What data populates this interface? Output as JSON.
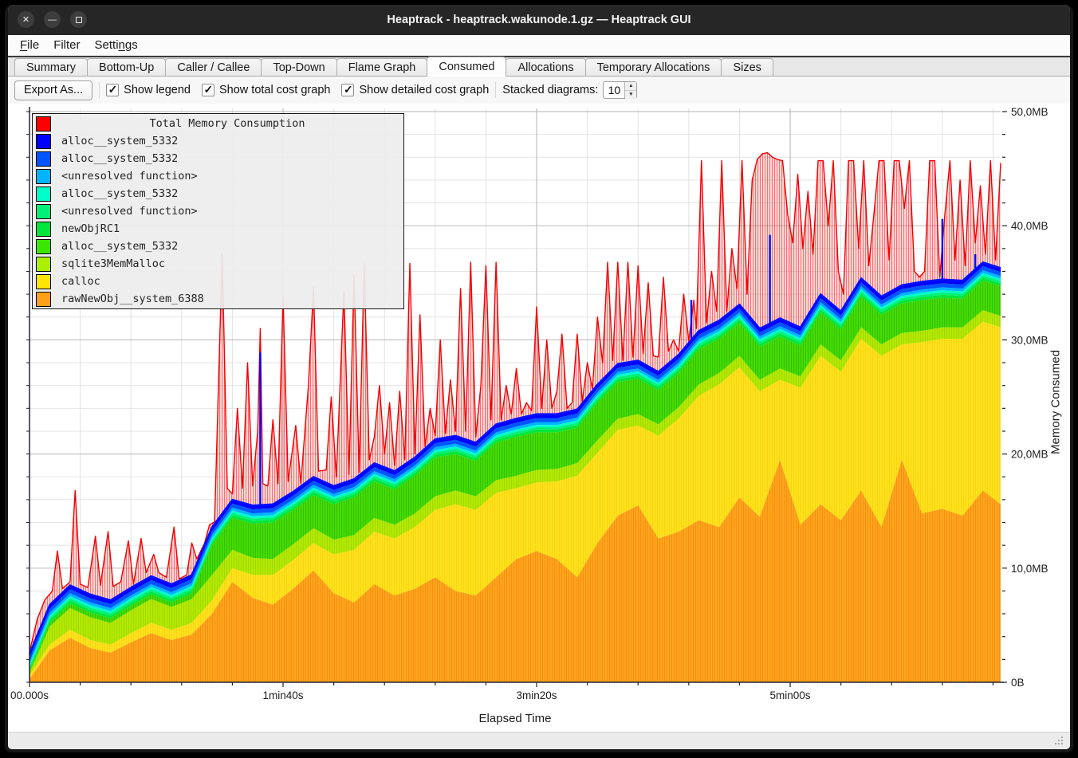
{
  "window": {
    "title": "Heaptrack - heaptrack.wakunode.1.gz — Heaptrack GUI",
    "controls": [
      {
        "name": "close",
        "glyph": "✕"
      },
      {
        "name": "minimize",
        "glyph": "—"
      },
      {
        "name": "maximize",
        "glyph": "sq"
      }
    ]
  },
  "menu": {
    "items": [
      {
        "label": "File",
        "accel_index": 0
      },
      {
        "label": "Filter",
        "accel_index": -1
      },
      {
        "label": "Settings",
        "accel_index": 5
      }
    ]
  },
  "tabs": {
    "items": [
      "Summary",
      "Bottom-Up",
      "Caller / Callee",
      "Top-Down",
      "Flame Graph",
      "Consumed",
      "Allocations",
      "Temporary Allocations",
      "Sizes"
    ],
    "active": "Consumed"
  },
  "toolbar": {
    "export_label": "Export As...",
    "checkboxes": [
      {
        "label": "Show legend",
        "checked": true
      },
      {
        "label": "Show total cost graph",
        "checked": true
      },
      {
        "label": "Show detailed cost graph",
        "checked": true
      }
    ],
    "stacked_label": "Stacked diagrams:",
    "stacked_value": "10"
  },
  "chart_data": {
    "type": "area",
    "xlabel": "Elapsed Time",
    "ylabel": "Memory Consumed",
    "xlim_seconds": [
      0,
      383
    ],
    "ylim_mb": [
      0,
      50
    ],
    "x_major_ticks": [
      {
        "t": 0,
        "label": "00.000s"
      },
      {
        "t": 100,
        "label": "1min40s"
      },
      {
        "t": 200,
        "label": "3min20s"
      },
      {
        "t": 300,
        "label": "5min00s"
      }
    ],
    "x_minor_step": 20,
    "y_major_ticks": [
      {
        "v": 0,
        "label": "0B"
      },
      {
        "v": 10,
        "label": "10,0MB"
      },
      {
        "v": 20,
        "label": "20,0MB"
      },
      {
        "v": 30,
        "label": "30,0MB"
      },
      {
        "v": 40,
        "label": "40,0MB"
      },
      {
        "v": 50,
        "label": "50,0MB"
      }
    ],
    "y_minor_step": 2,
    "legend": [
      {
        "label": "Total Memory Consumption",
        "color": "#ff0000",
        "title_row": true
      },
      {
        "label": "alloc__system_5332",
        "color": "#0000ff"
      },
      {
        "label": "alloc__system_5332",
        "color": "#0055ff"
      },
      {
        "label": "<unresolved function>",
        "color": "#00b4ff"
      },
      {
        "label": "alloc__system_5332",
        "color": "#00ffc8"
      },
      {
        "label": "<unresolved function>",
        "color": "#00f078"
      },
      {
        "label": "newObjRC1",
        "color": "#00e63c"
      },
      {
        "label": "alloc__system_5332",
        "color": "#3ce600"
      },
      {
        "label": "sqlite3MemMalloc",
        "color": "#aaf000"
      },
      {
        "label": "calloc",
        "color": "#ffe600"
      },
      {
        "label": "rawNewObj__system_6388",
        "color": "#ffa019"
      }
    ],
    "t": [
      0,
      8,
      16,
      24,
      32,
      40,
      48,
      56,
      64,
      72,
      80,
      88,
      96,
      104,
      112,
      120,
      128,
      136,
      144,
      152,
      160,
      168,
      176,
      184,
      192,
      200,
      208,
      216,
      224,
      232,
      240,
      248,
      256,
      264,
      272,
      280,
      288,
      296,
      304,
      312,
      320,
      328,
      336,
      344,
      352,
      360,
      368,
      376,
      383
    ],
    "stack": [
      {
        "name": "rawNewObj__system_6388",
        "color": "#ffa51e",
        "hatch": "#f08000",
        "values": [
          0.3,
          2.8,
          3.9,
          3.0,
          2.6,
          3.5,
          4.3,
          3.7,
          4.2,
          6.0,
          8.8,
          7.4,
          6.8,
          8.2,
          9.8,
          7.8,
          7.0,
          8.6,
          7.6,
          8.2,
          9.2,
          8.0,
          7.6,
          9.2,
          10.8,
          11.5,
          10.8,
          9.2,
          12.2,
          14.6,
          15.5,
          12.6,
          13.2,
          14.2,
          13.6,
          16.2,
          14.5,
          19.5,
          13.8,
          15.6,
          14.2,
          16.8,
          13.6,
          19.5,
          14.8,
          15.2,
          14.6,
          16.8,
          15.6
        ]
      },
      {
        "name": "calloc",
        "color": "#ffe11e",
        "hatch": "#f2cb00",
        "values": [
          0.3,
          0.5,
          0.7,
          0.7,
          0.7,
          0.8,
          0.9,
          0.9,
          1.0,
          1.2,
          1.2,
          2.0,
          2.6,
          2.5,
          2.4,
          3.4,
          4.6,
          4.6,
          5.0,
          5.4,
          5.9,
          7.6,
          7.5,
          7.4,
          6.2,
          6.0,
          6.8,
          8.9,
          7.9,
          7.5,
          7.0,
          9.0,
          9.9,
          10.9,
          12.5,
          11.4,
          11.0,
          7.0,
          12.0,
          13.0,
          13.0,
          13.3,
          15.0,
          10.1,
          15.0,
          14.9,
          15.5,
          14.8,
          15.5
        ]
      },
      {
        "name": "sqlite3MemMalloc",
        "color": "#b4ea00",
        "hatch": "#93c600",
        "values": [
          0.2,
          1.6,
          1.9,
          2.0,
          1.9,
          2.0,
          2.1,
          2.0,
          2.1,
          2.2,
          1.6,
          1.5,
          1.4,
          1.4,
          1.3,
          1.3,
          1.3,
          1.2,
          1.2,
          1.2,
          1.2,
          1.2,
          1.2,
          1.1,
          1.1,
          1.1,
          1.1,
          1.1,
          1.1,
          1.0,
          1.0,
          1.0,
          1.0,
          1.0,
          1.0,
          1.0,
          1.0,
          1.0,
          1.0,
          1.0,
          1.0,
          1.0,
          1.0,
          1.0,
          1.0,
          1.0,
          1.0,
          1.0,
          1.0
        ]
      },
      {
        "name": "alloc__system_5332",
        "color": "#44dd00",
        "hatch": "#2ca400",
        "values": [
          0.1,
          0.3,
          0.4,
          0.4,
          0.4,
          0.4,
          0.4,
          0.4,
          0.5,
          2.6,
          2.8,
          3.0,
          3.2,
          3.0,
          2.9,
          3.1,
          3.3,
          3.2,
          3.1,
          3.3,
          3.4,
          3.2,
          3.1,
          3.3,
          3.4,
          3.3,
          3.2,
          3.1,
          3.3,
          3.2,
          3.1,
          3.0,
          3.0,
          3.1,
          3.0,
          2.9,
          2.9,
          2.8,
          2.7,
          2.8,
          2.7,
          2.7,
          2.6,
          2.6,
          2.7,
          2.6,
          2.5,
          2.6,
          2.6
        ]
      },
      {
        "name": "newObjRC1",
        "color": "#00e63c",
        "height": 0.25
      },
      {
        "name": "<unresolved function>",
        "color": "#00f078",
        "height": 0.2
      },
      {
        "name": "alloc__system_5332",
        "color": "#00ffc8",
        "height": 0.2
      },
      {
        "name": "<unresolved function>",
        "color": "#00b4ff",
        "height": 0.25
      },
      {
        "name": "alloc__system_5332",
        "color": "#0055ff",
        "height": 0.35
      },
      {
        "name": "alloc__system_5332",
        "color": "#0000ff",
        "height": 0.35
      }
    ],
    "blue_spikes": [
      {
        "t": 91,
        "v": 28.9
      },
      {
        "t": 261,
        "v": 33.5
      },
      {
        "t": 292,
        "v": 39.2
      },
      {
        "t": 360,
        "v": 40.6
      },
      {
        "t": 373,
        "v": 37.5
      }
    ],
    "total": {
      "name": "Total Memory Consumption",
      "color": "#f20000",
      "points": [
        [
          0,
          2.6
        ],
        [
          3,
          5.5
        ],
        [
          6,
          7.2
        ],
        [
          9,
          8.0
        ],
        [
          11,
          11.5
        ],
        [
          13,
          8.2
        ],
        [
          16,
          8.8
        ],
        [
          18,
          16.8
        ],
        [
          20,
          8.6
        ],
        [
          23,
          8.3
        ],
        [
          26,
          12.8
        ],
        [
          28,
          8.5
        ],
        [
          31,
          13.2
        ],
        [
          33,
          8.4
        ],
        [
          36,
          8.8
        ],
        [
          39,
          12.4
        ],
        [
          41,
          8.6
        ],
        [
          44,
          12.6
        ],
        [
          46,
          9.6
        ],
        [
          49,
          11.2
        ],
        [
          51,
          9.6
        ],
        [
          54,
          9.2
        ],
        [
          57,
          13.6
        ],
        [
          59,
          9.0
        ],
        [
          62,
          9.4
        ],
        [
          64,
          12.2
        ],
        [
          66,
          10.8
        ],
        [
          69,
          12.0
        ],
        [
          71,
          13.8
        ],
        [
          73,
          14.0
        ],
        [
          76,
          37.6
        ],
        [
          78,
          17.0
        ],
        [
          80,
          16.5
        ],
        [
          82,
          24.0
        ],
        [
          84,
          17.0
        ],
        [
          86,
          28.0
        ],
        [
          88,
          17.2
        ],
        [
          90,
          22.0
        ],
        [
          91,
          31.0
        ],
        [
          92,
          17.4
        ],
        [
          94,
          17.2
        ],
        [
          96,
          23.0
        ],
        [
          98,
          17.4
        ],
        [
          100,
          33.8
        ],
        [
          102,
          17.6
        ],
        [
          105,
          22.5
        ],
        [
          107,
          17.4
        ],
        [
          110,
          26.0
        ],
        [
          112,
          34.6
        ],
        [
          114,
          18.5
        ],
        [
          117,
          18.6
        ],
        [
          119,
          25.0
        ],
        [
          121,
          18.0
        ],
        [
          124,
          34.3
        ],
        [
          126,
          18.2
        ],
        [
          128,
          35.7
        ],
        [
          130,
          18.4
        ],
        [
          132,
          36.7
        ],
        [
          134,
          19.5
        ],
        [
          136,
          21.5
        ],
        [
          138,
          26.0
        ],
        [
          140,
          20.0
        ],
        [
          142,
          24.5
        ],
        [
          144,
          19.0
        ],
        [
          146,
          25.5
        ],
        [
          148,
          19.5
        ],
        [
          150,
          36.7
        ],
        [
          152,
          20.0
        ],
        [
          154,
          32.2
        ],
        [
          156,
          20.5
        ],
        [
          158,
          24.0
        ],
        [
          160,
          21.6
        ],
        [
          162,
          30.0
        ],
        [
          164,
          21.8
        ],
        [
          166,
          26.5
        ],
        [
          168,
          22.0
        ],
        [
          170,
          34.5
        ],
        [
          172,
          22.0
        ],
        [
          174,
          36.8
        ],
        [
          176,
          21.5
        ],
        [
          178,
          26.0
        ],
        [
          180,
          36.5
        ],
        [
          182,
          23.0
        ],
        [
          184,
          36.8
        ],
        [
          186,
          23.0
        ],
        [
          188,
          26.0
        ],
        [
          190,
          23.5
        ],
        [
          192,
          27.5
        ],
        [
          194,
          23.5
        ],
        [
          196,
          24.5
        ],
        [
          198,
          23.8
        ],
        [
          200,
          32.9
        ],
        [
          202,
          24.0
        ],
        [
          204,
          30.0
        ],
        [
          206,
          24.0
        ],
        [
          208,
          25.5
        ],
        [
          210,
          30.5
        ],
        [
          212,
          24.0
        ],
        [
          214,
          24.5
        ],
        [
          216,
          30.5
        ],
        [
          218,
          24.2
        ],
        [
          220,
          28.0
        ],
        [
          222,
          25.5
        ],
        [
          224,
          32.0
        ],
        [
          226,
          28.0
        ],
        [
          228,
          36.8
        ],
        [
          230,
          28.2
        ],
        [
          232,
          36.8
        ],
        [
          234,
          28.2
        ],
        [
          236,
          36.8
        ],
        [
          238,
          28.5
        ],
        [
          240,
          36.5
        ],
        [
          242,
          28.8
        ],
        [
          244,
          35.0
        ],
        [
          246,
          28.6
        ],
        [
          248,
          28.5
        ],
        [
          250,
          35.5
        ],
        [
          252,
          29.0
        ],
        [
          254,
          30.0
        ],
        [
          256,
          29.0
        ],
        [
          258,
          34.0
        ],
        [
          260,
          29.5
        ],
        [
          262,
          33.5
        ],
        [
          263,
          31.0
        ],
        [
          265,
          45.7
        ],
        [
          267,
          31.5
        ],
        [
          269,
          36.0
        ],
        [
          271,
          32.5
        ],
        [
          273,
          45.7
        ],
        [
          275,
          32.5
        ],
        [
          277,
          38.0
        ],
        [
          279,
          34.5
        ],
        [
          281,
          45.7
        ],
        [
          283,
          34.0
        ],
        [
          285,
          44.0
        ],
        [
          287,
          45.8
        ],
        [
          289,
          46.3
        ],
        [
          291,
          46.4
        ],
        [
          293,
          46.0
        ],
        [
          295,
          45.8
        ],
        [
          297,
          45.7
        ],
        [
          299,
          41.0
        ],
        [
          301,
          38.5
        ],
        [
          303,
          44.5
        ],
        [
          305,
          38.0
        ],
        [
          307,
          43.0
        ],
        [
          309,
          37.5
        ],
        [
          311,
          45.7
        ],
        [
          313,
          45.7
        ],
        [
          315,
          40.0
        ],
        [
          317,
          45.7
        ],
        [
          319,
          36.0
        ],
        [
          321,
          34.0
        ],
        [
          323,
          45.7
        ],
        [
          325,
          45.7
        ],
        [
          327,
          38.0
        ],
        [
          329,
          45.7
        ],
        [
          331,
          36.5
        ],
        [
          333,
          41.0
        ],
        [
          335,
          45.7
        ],
        [
          337,
          45.7
        ],
        [
          339,
          37.0
        ],
        [
          341,
          45.7
        ],
        [
          343,
          45.7
        ],
        [
          345,
          41.5
        ],
        [
          347,
          45.7
        ],
        [
          349,
          36.0
        ],
        [
          351,
          35.5
        ],
        [
          353,
          36.0
        ],
        [
          355,
          45.7
        ],
        [
          357,
          45.7
        ],
        [
          359,
          35.5
        ],
        [
          361,
          41.0
        ],
        [
          363,
          45.7
        ],
        [
          365,
          37.0
        ],
        [
          367,
          44.0
        ],
        [
          369,
          36.5
        ],
        [
          371,
          45.7
        ],
        [
          373,
          38.5
        ],
        [
          375,
          43.5
        ],
        [
          377,
          37.5
        ],
        [
          379,
          45.7
        ],
        [
          381,
          37.0
        ],
        [
          383,
          45.5
        ]
      ]
    }
  }
}
